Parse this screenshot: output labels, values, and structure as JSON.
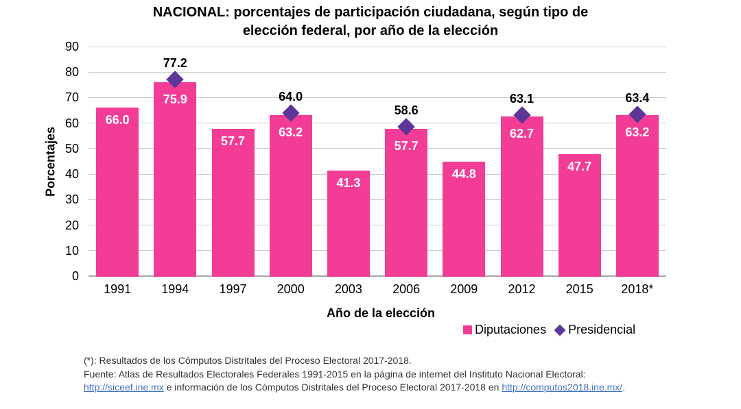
{
  "header": {
    "line1": "NACIONAL: porcentajes de participación ciudadana, según tipo de",
    "line2": "elección federal, por año de la elección"
  },
  "chart_data": {
    "type": "bar",
    "title": "NACIONAL: porcentajes de participación ciudadana, según tipo de elección federal, por año de la elección",
    "categories": [
      "1991",
      "1994",
      "1997",
      "2000",
      "2003",
      "2006",
      "2009",
      "2012",
      "2015",
      "2018*"
    ],
    "series": [
      {
        "name": "Diputaciones",
        "type": "bar",
        "color": "#F33C96",
        "values": [
          66.0,
          75.9,
          57.7,
          63.2,
          41.3,
          57.7,
          44.8,
          62.7,
          47.7,
          63.2
        ]
      },
      {
        "name": "Presidencial",
        "type": "scatter",
        "marker": "diamond",
        "color": "#5C3699",
        "values": [
          null,
          77.2,
          null,
          64.0,
          null,
          58.6,
          null,
          63.1,
          null,
          63.4
        ]
      }
    ],
    "xlabel": "Año de la elección",
    "ylabel": "Porcentajes",
    "ylim": [
      0,
      90
    ],
    "ytick_step": 10,
    "grid": true,
    "legend_position": "bottom-right",
    "colors": {
      "bar": "#F33C96",
      "marker": "#5C3699",
      "gridline": "#C9C9C9",
      "axis_line": "#A6A6A6",
      "bar_label": "#FFFFFF",
      "marker_label": "#000000",
      "link": "#4472C4"
    }
  },
  "footnotes": {
    "line1": "(*): Resultados de los Cómputos Distritales del Proceso Electoral 2017-2018.",
    "line2": "Fuente: Atlas de Resultados Electorales Federales 1991-2015 en la página de internet del Instituto Nacional Electoral:",
    "line3": {
      "link1": "http://siceef.ine.mx",
      "mid": " e información de los Cómputos Distritales del Proceso Electoral 2017-2018 en ",
      "link2": "http://computos2018.ine.mx/",
      "end": "."
    }
  }
}
